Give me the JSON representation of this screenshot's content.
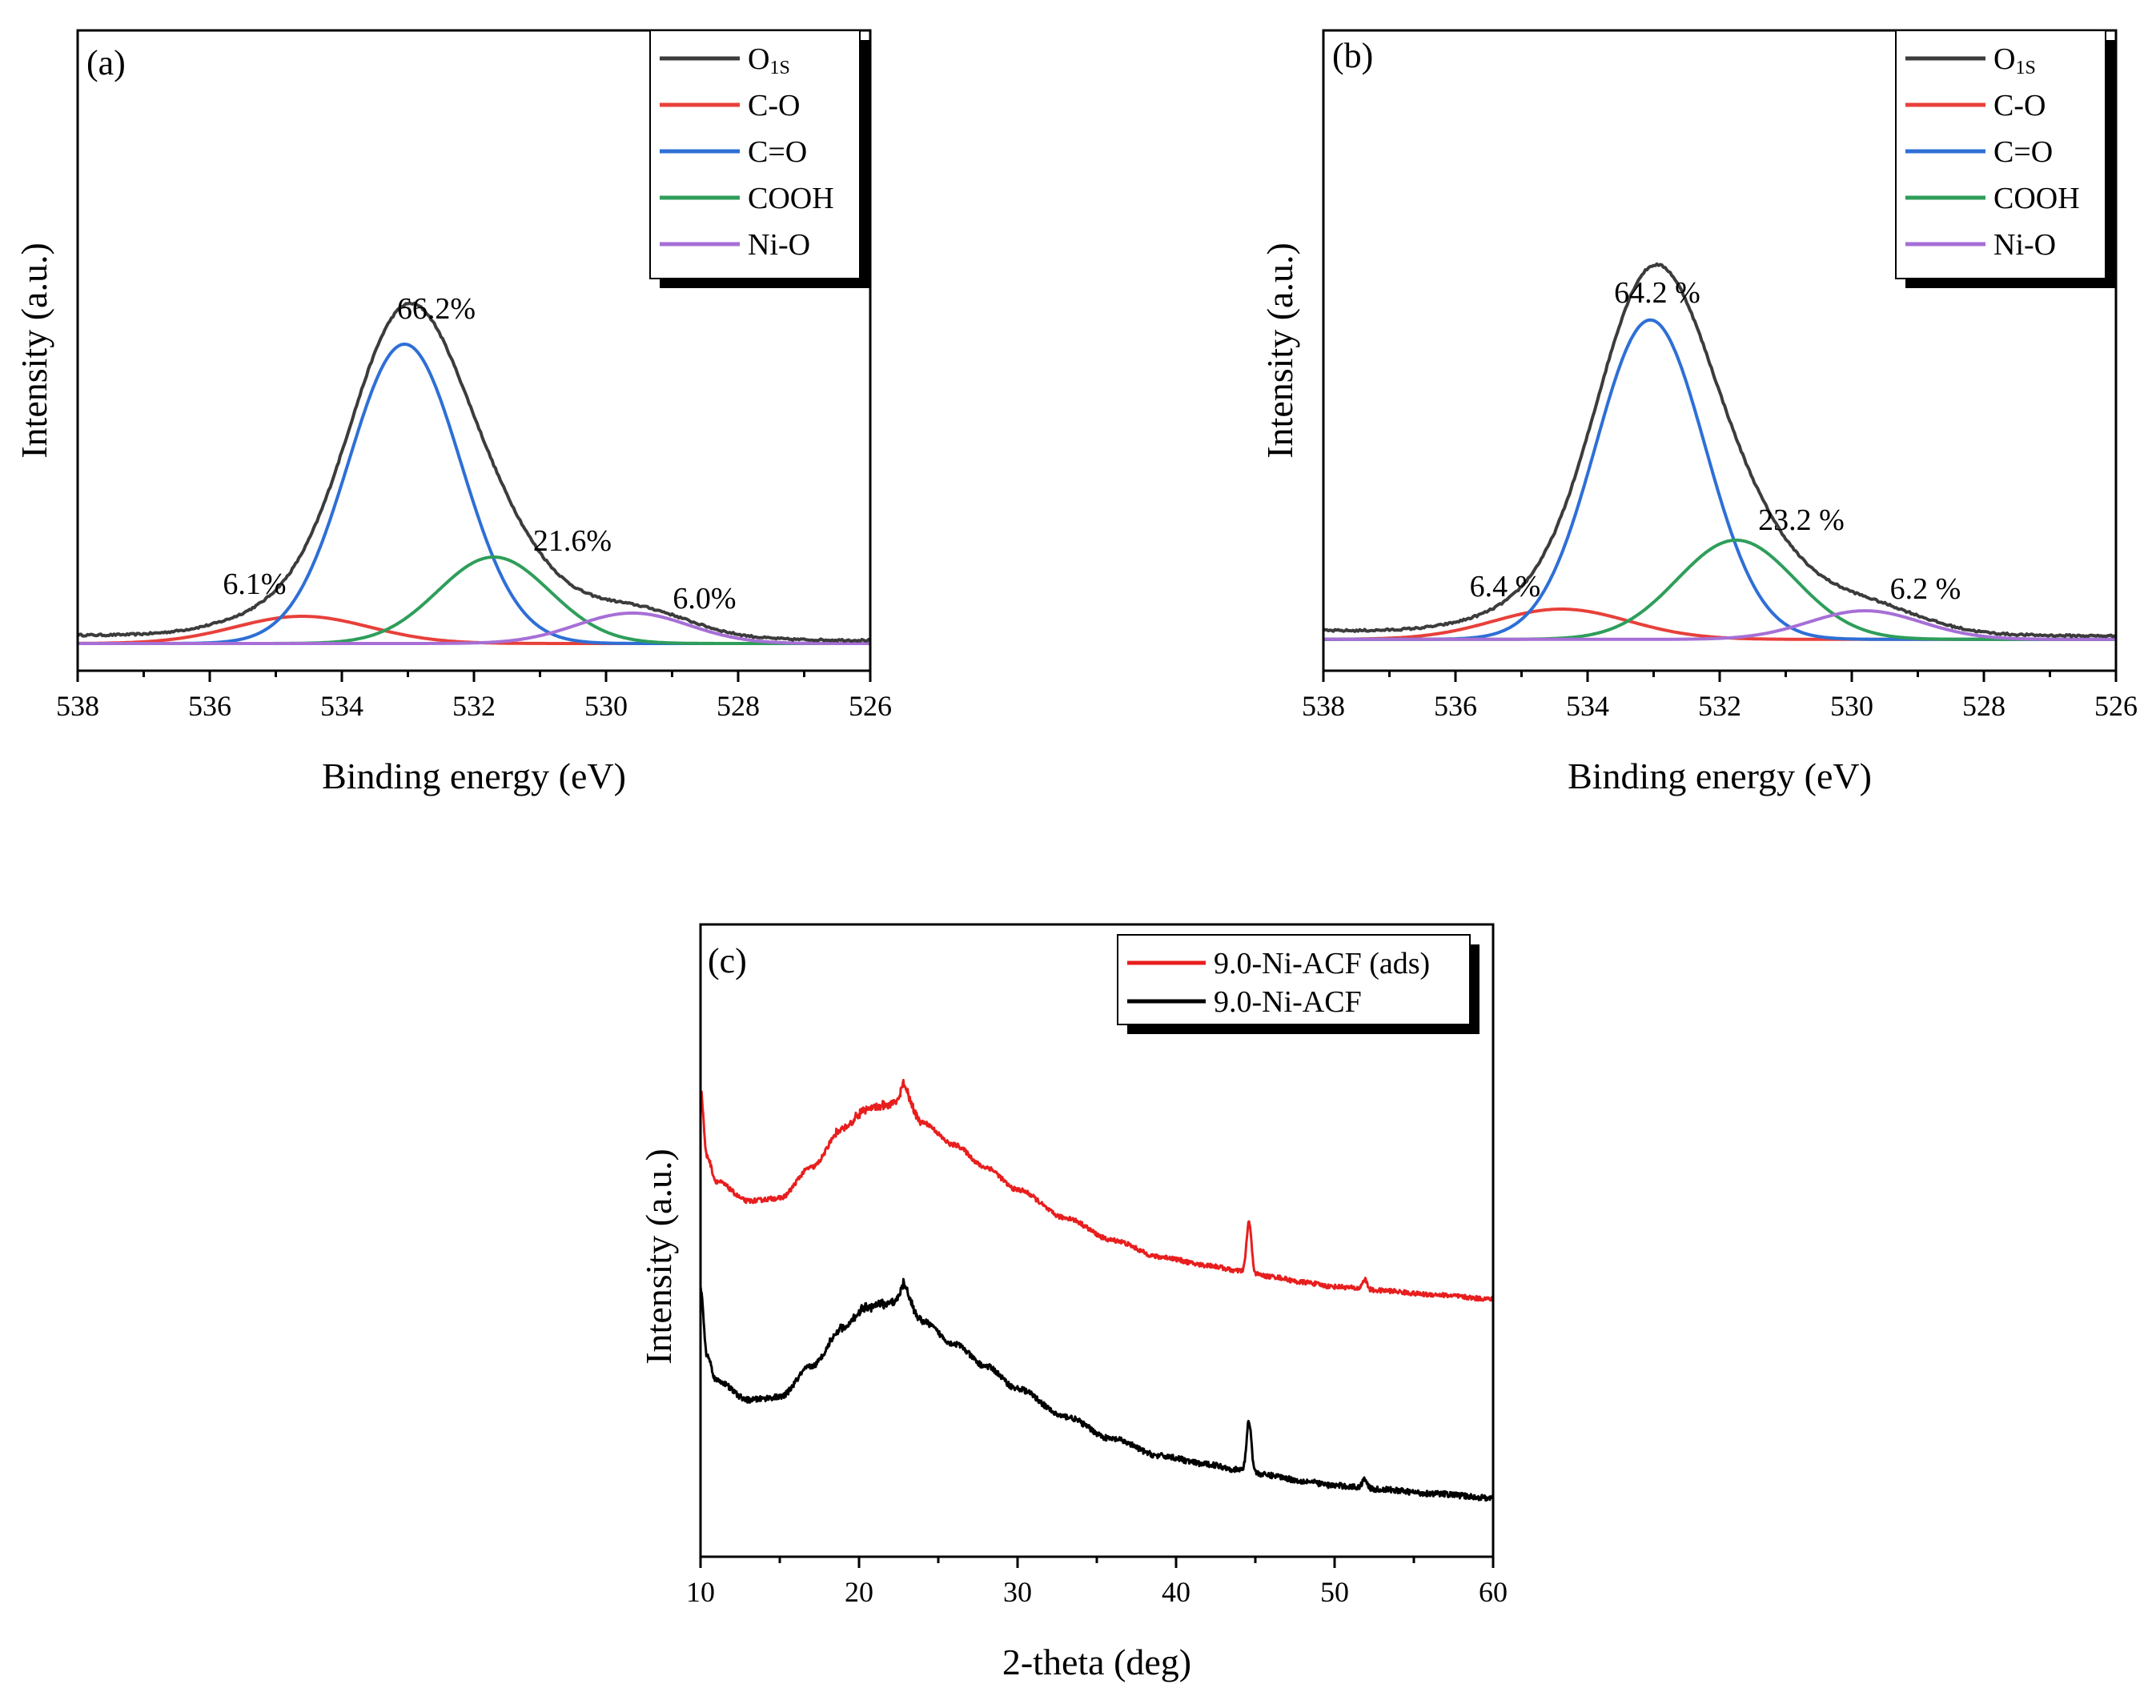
{
  "colors": {
    "O1s": "#3c3c3c",
    "C-O": "#e8403a",
    "C=O": "#2e6fd6",
    "COOH": "#2e9e5a",
    "Ni-O": "#a66fd6",
    "ads": "#e81e1e",
    "fresh": "#000000"
  },
  "chart_data": [
    {
      "panel": "(a)",
      "type": "line",
      "xlabel": "Binding energy (eV)",
      "ylabel": "Intensity (a.u.)",
      "xlim": [
        538,
        526
      ],
      "x_ticks": [
        538,
        536,
        534,
        532,
        530,
        528,
        526
      ],
      "y_ticks_shown": false,
      "legend": {
        "position": "top-right",
        "entries": [
          {
            "label": "O",
            "sub": "1S",
            "key": "O1s"
          },
          {
            "label": "C-O",
            "key": "C-O"
          },
          {
            "label": "C=O",
            "key": "C=O"
          },
          {
            "label": "COOH",
            "key": "COOH"
          },
          {
            "label": "Ni-O",
            "key": "Ni-O"
          }
        ]
      },
      "baseline": 0.02,
      "components": [
        {
          "name": "C-O",
          "center": 534.6,
          "amplitude": 0.085,
          "fwhm": 2.4,
          "percent": "6.1%"
        },
        {
          "name": "C=O",
          "center": 533.05,
          "amplitude": 0.935,
          "fwhm": 2.0,
          "percent": "66.2%"
        },
        {
          "name": "COOH",
          "center": 531.7,
          "amplitude": 0.27,
          "fwhm": 2.0,
          "percent": "21.6%"
        },
        {
          "name": "Ni-O",
          "center": 529.6,
          "amplitude": 0.095,
          "fwhm": 2.0,
          "percent": "6.0%"
        }
      ],
      "annotations": [
        "66.2%",
        "21.6%",
        "6.1%",
        "6.0%"
      ]
    },
    {
      "panel": "(b)",
      "type": "line",
      "xlabel": "Binding energy (eV)",
      "ylabel": "Intensity (a.u.)",
      "xlim": [
        538,
        526
      ],
      "x_ticks": [
        538,
        536,
        534,
        532,
        530,
        528,
        526
      ],
      "y_ticks_shown": false,
      "legend": {
        "position": "top-right",
        "entries": [
          {
            "label": "O",
            "sub": "1S",
            "key": "O1s"
          },
          {
            "label": "C-O",
            "key": "C-O"
          },
          {
            "label": "C=O",
            "key": "C=O"
          },
          {
            "label": "COOH",
            "key": "COOH"
          },
          {
            "label": "Ni-O",
            "key": "Ni-O"
          }
        ]
      },
      "baseline": 0.02,
      "components": [
        {
          "name": "C-O",
          "center": 534.4,
          "amplitude": 0.09,
          "fwhm": 2.4,
          "percent": "6.4 %"
        },
        {
          "name": "C=O",
          "center": 533.05,
          "amplitude": 0.95,
          "fwhm": 1.95,
          "percent": "64.2 %"
        },
        {
          "name": "COOH",
          "center": 531.75,
          "amplitude": 0.295,
          "fwhm": 2.1,
          "percent": "23.2 %"
        },
        {
          "name": "Ni-O",
          "center": 529.8,
          "amplitude": 0.085,
          "fwhm": 2.0,
          "percent": "6.2 %"
        }
      ],
      "annotations": [
        "64.2 %",
        "23.2 %",
        "6.4 %",
        "6.2 %"
      ]
    },
    {
      "panel": "(c)",
      "type": "line",
      "xlabel": "2-theta (deg)",
      "ylabel": "Intensity (a.u.)",
      "xlim": [
        10,
        60
      ],
      "x_ticks": [
        10,
        20,
        30,
        40,
        50,
        60
      ],
      "y_ticks_shown": false,
      "legend": {
        "position": "top-right",
        "entries": [
          {
            "label": "9.0-Ni-ACF (ads)",
            "key": "ads"
          },
          {
            "label": "9.0-Ni-ACF",
            "key": "fresh"
          }
        ]
      },
      "series": [
        {
          "name": "9.0-Ni-ACF (ads)",
          "offset": 0.355,
          "noise": 0.004
        },
        {
          "name": "9.0-Ni-ACF",
          "offset": 0.0,
          "noise": 0.005
        }
      ],
      "profile": {
        "x": [
          10,
          10.4,
          11,
          13,
          15,
          17,
          19,
          20.5,
          21.5,
          22.5,
          23,
          24,
          26,
          28,
          30,
          33,
          36,
          39,
          42,
          44,
          46,
          48,
          50,
          53,
          56,
          60
        ],
        "y": [
          0.48,
          0.36,
          0.315,
          0.28,
          0.285,
          0.34,
          0.41,
          0.445,
          0.45,
          0.455,
          0.46,
          0.42,
          0.38,
          0.34,
          0.3,
          0.25,
          0.21,
          0.18,
          0.165,
          0.155,
          0.145,
          0.135,
          0.127,
          0.12,
          0.113,
          0.105
        ]
      },
      "peaks": [
        {
          "center": 44.6,
          "height": 0.09,
          "width": 0.15
        },
        {
          "center": 51.9,
          "height": 0.018,
          "width": 0.15
        },
        {
          "center": 22.8,
          "height": 0.03,
          "width": 0.2
        }
      ]
    }
  ]
}
